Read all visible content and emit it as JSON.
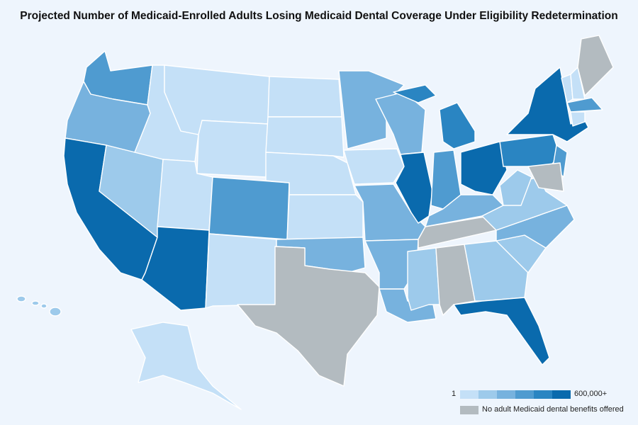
{
  "title": "Projected Number of Medicaid-Enrolled Adults Losing Medicaid Dental Coverage Under Eligibility Redetermination",
  "legend": {
    "min_label": "1",
    "max_label": "600,000+",
    "no_benefits_label": "No adult Medicaid dental benefits offered"
  },
  "colors": {
    "levels": [
      "#c4e0f7",
      "#9dcaeb",
      "#77b2de",
      "#4f9bd0",
      "#2a85c2",
      "#0a6aad"
    ],
    "no_benefits": "#b3bbc0",
    "background": "#eef5fd"
  },
  "states": [
    {
      "code": "WA",
      "level": 4
    },
    {
      "code": "OR",
      "level": 3
    },
    {
      "code": "CA",
      "level": 6
    },
    {
      "code": "NV",
      "level": 2
    },
    {
      "code": "ID",
      "level": 1
    },
    {
      "code": "MT",
      "level": 1
    },
    {
      "code": "WY",
      "level": 1
    },
    {
      "code": "UT",
      "level": 1
    },
    {
      "code": "CO",
      "level": 4
    },
    {
      "code": "AZ",
      "level": 6
    },
    {
      "code": "NM",
      "level": 1
    },
    {
      "code": "ND",
      "level": 1
    },
    {
      "code": "SD",
      "level": 1
    },
    {
      "code": "NE",
      "level": 1
    },
    {
      "code": "KS",
      "level": 1
    },
    {
      "code": "OK",
      "level": 3
    },
    {
      "code": "TX",
      "level": 0
    },
    {
      "code": "MN",
      "level": 3
    },
    {
      "code": "IA",
      "level": 1
    },
    {
      "code": "MO",
      "level": 3
    },
    {
      "code": "AR",
      "level": 3
    },
    {
      "code": "LA",
      "level": 3
    },
    {
      "code": "WI",
      "level": 3
    },
    {
      "code": "IL",
      "level": 6
    },
    {
      "code": "MI",
      "level": 5
    },
    {
      "code": "IN",
      "level": 4
    },
    {
      "code": "OH",
      "level": 6
    },
    {
      "code": "KY",
      "level": 3
    },
    {
      "code": "TN",
      "level": 0
    },
    {
      "code": "MS",
      "level": 2
    },
    {
      "code": "AL",
      "level": 0
    },
    {
      "code": "GA",
      "level": 2
    },
    {
      "code": "FL",
      "level": 6
    },
    {
      "code": "SC",
      "level": 2
    },
    {
      "code": "NC",
      "level": 3
    },
    {
      "code": "VA",
      "level": 2
    },
    {
      "code": "WV",
      "level": 2
    },
    {
      "code": "PA",
      "level": 5
    },
    {
      "code": "NY",
      "level": 6
    },
    {
      "code": "NJ",
      "level": 4
    },
    {
      "code": "MD",
      "level": 0
    },
    {
      "code": "VT",
      "level": 1
    },
    {
      "code": "NH",
      "level": 1
    },
    {
      "code": "ME",
      "level": 0
    },
    {
      "code": "MA",
      "level": 4
    },
    {
      "code": "CT",
      "level": 1
    },
    {
      "code": "AK",
      "level": 1
    },
    {
      "code": "HI",
      "level": 2
    }
  ]
}
